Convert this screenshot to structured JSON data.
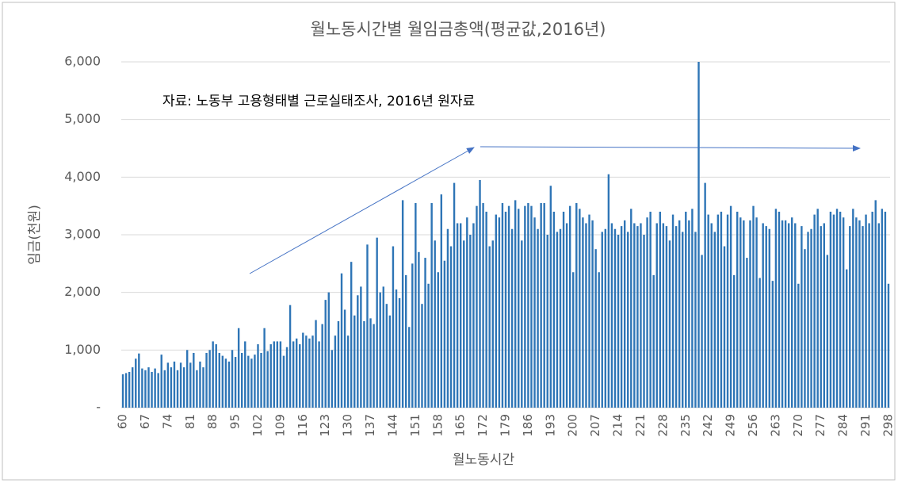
{
  "chart_data": {
    "type": "bar",
    "title": "월노동시간별 월임금총액(평균값,2016년)",
    "annotation": "자료: 노동부 고용형태별 근로실태조사, 2016년 원자료",
    "x_label": "월노동시간",
    "y_label": "임금(천원)",
    "color": "#2e75b6",
    "grid": true,
    "ylim": [
      0,
      6000
    ],
    "yticks": [
      {
        "value": 0,
        "label": "-"
      },
      {
        "value": 1000,
        "label": "1,000"
      },
      {
        "value": 2000,
        "label": "2,000"
      },
      {
        "value": 3000,
        "label": "3,000"
      },
      {
        "value": 4000,
        "label": "4,000"
      },
      {
        "value": 5000,
        "label": "5,000"
      },
      {
        "value": 6000,
        "label": "6,000"
      }
    ],
    "categories": [
      "60",
      null,
      null,
      null,
      null,
      null,
      null,
      "67",
      null,
      null,
      null,
      null,
      null,
      null,
      "74",
      null,
      null,
      null,
      null,
      null,
      null,
      "81",
      null,
      null,
      null,
      null,
      null,
      null,
      "88",
      null,
      null,
      null,
      null,
      null,
      null,
      "95",
      null,
      null,
      null,
      null,
      null,
      null,
      "102",
      null,
      null,
      null,
      null,
      null,
      null,
      "109",
      null,
      null,
      null,
      null,
      null,
      null,
      "116",
      null,
      null,
      null,
      null,
      null,
      null,
      "123",
      null,
      null,
      null,
      null,
      null,
      null,
      "130",
      null,
      null,
      null,
      null,
      null,
      null,
      "137",
      null,
      null,
      null,
      null,
      null,
      null,
      "144",
      null,
      null,
      null,
      null,
      null,
      null,
      "151",
      null,
      null,
      null,
      null,
      null,
      null,
      "158",
      null,
      null,
      null,
      null,
      null,
      null,
      "165",
      null,
      null,
      null,
      null,
      null,
      null,
      "172",
      null,
      null,
      null,
      null,
      null,
      null,
      "179",
      null,
      null,
      null,
      null,
      null,
      null,
      "186",
      null,
      null,
      null,
      null,
      null,
      null,
      "193",
      null,
      null,
      null,
      null,
      null,
      null,
      "200",
      null,
      null,
      null,
      null,
      null,
      null,
      "207",
      null,
      null,
      null,
      null,
      null,
      null,
      "214",
      null,
      null,
      null,
      null,
      null,
      null,
      "221",
      null,
      null,
      null,
      null,
      null,
      null,
      "228",
      null,
      null,
      null,
      null,
      null,
      null,
      "235",
      null,
      null,
      null,
      null,
      null,
      null,
      "242",
      null,
      null,
      null,
      null,
      null,
      null,
      "249",
      null,
      null,
      null,
      null,
      null,
      null,
      "256",
      null,
      null,
      null,
      null,
      null,
      null,
      "263",
      null,
      null,
      null,
      null,
      null,
      null,
      "270",
      null,
      null,
      null,
      null,
      null,
      null,
      "277",
      null,
      null,
      null,
      null,
      null,
      null,
      "284",
      null,
      null,
      null,
      null,
      null,
      null,
      "291",
      null,
      null,
      null,
      null,
      null,
      null,
      "298"
    ],
    "values": [
      580,
      600,
      620,
      700,
      850,
      940,
      680,
      650,
      700,
      620,
      680,
      600,
      920,
      650,
      780,
      700,
      800,
      650,
      780,
      700,
      1000,
      780,
      950,
      650,
      800,
      700,
      950,
      1000,
      1150,
      1100,
      950,
      900,
      850,
      800,
      1000,
      880,
      1380,
      950,
      1150,
      900,
      850,
      920,
      1100,
      950,
      1380,
      980,
      1100,
      1150,
      1150,
      1150,
      900,
      1050,
      1780,
      1150,
      1200,
      1100,
      1300,
      1250,
      1200,
      1250,
      1520,
      1150,
      1450,
      1870,
      2000,
      1000,
      1250,
      1500,
      2330,
      1700,
      1250,
      2530,
      1600,
      1950,
      2100,
      1500,
      2830,
      1550,
      1450,
      2950,
      2000,
      2100,
      1800,
      1600,
      2800,
      2050,
      1900,
      3600,
      2300,
      1400,
      2500,
      3550,
      2700,
      1800,
      2600,
      2150,
      3550,
      2900,
      2350,
      3700,
      2550,
      3100,
      2800,
      3900,
      3200,
      3200,
      2900,
      3300,
      3000,
      3200,
      3500,
      3950,
      3550,
      3400,
      2800,
      2900,
      3350,
      3300,
      3550,
      3400,
      3500,
      3100,
      3600,
      3450,
      2900,
      3500,
      3550,
      3500,
      3300,
      3100,
      3550,
      3550,
      3000,
      3850,
      3400,
      3050,
      3100,
      3400,
      3200,
      3500,
      2350,
      3550,
      3450,
      3300,
      3200,
      3350,
      3250,
      2750,
      2350,
      3050,
      3100,
      4050,
      3200,
      3100,
      3000,
      3150,
      3250,
      3050,
      3450,
      3200,
      3150,
      3200,
      3000,
      3300,
      3400,
      2300,
      3200,
      3400,
      3200,
      3150,
      2900,
      3350,
      3150,
      3250,
      3050,
      3400,
      3250,
      3450,
      3050,
      6000,
      2650,
      3900,
      3350,
      3200,
      3050,
      3350,
      3400,
      2800,
      3350,
      3500,
      2300,
      3400,
      3300,
      3250,
      2600,
      3250,
      3500,
      3300,
      2250,
      3200,
      3150,
      3100,
      2200,
      3450,
      3400,
      3250,
      3250,
      3200,
      3300,
      3200,
      2150,
      3150,
      2750,
      3050,
      3100,
      3350,
      3450,
      3150,
      3200,
      2650,
      3400,
      3350,
      3450,
      3400,
      3300,
      2400,
      3150,
      3450,
      3300,
      3250,
      3150,
      3350,
      3200,
      3400,
      3600,
      3200,
      3450,
      3400,
      2150
    ]
  }
}
